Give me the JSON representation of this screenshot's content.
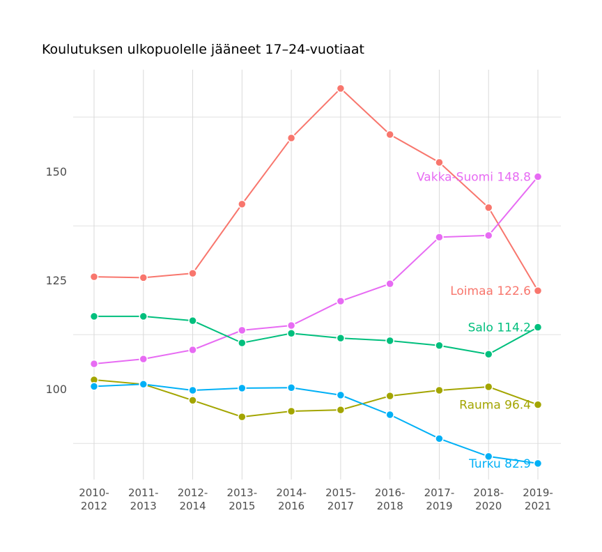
{
  "chart_data": {
    "type": "line",
    "title": "Koulutuksen ulkopuolelle jääneet 17–24-vuotiaat",
    "xlabel": "",
    "ylabel": "",
    "categories": [
      "2010-\n2012",
      "2011-\n2013",
      "2012-\n2014",
      "2013-\n2015",
      "2014-\n2016",
      "2015-\n2017",
      "2016-\n2018",
      "2017-\n2019",
      "2018-\n2020",
      "2019-\n2021"
    ],
    "yticks": [
      100,
      125,
      150
    ],
    "ylim": [
      79.2,
      173.4
    ],
    "grid": true,
    "legend": "none (direct labels at line ends)",
    "series": [
      {
        "name": "Loimaa",
        "color": "#F8766D",
        "label": "Loimaa 122.6",
        "values": [
          125.8,
          125.6,
          126.6,
          142.5,
          157.7,
          169.1,
          158.5,
          152.1,
          141.7,
          122.6
        ]
      },
      {
        "name": "Vakka-Suomi",
        "color": "#E76BF3",
        "label": "Vakka-Suomi 148.8",
        "values": [
          105.8,
          106.9,
          109.0,
          113.5,
          114.6,
          120.2,
          124.2,
          134.9,
          135.3,
          148.8
        ]
      },
      {
        "name": "Salo",
        "color": "#00BF7D",
        "label": "Salo 114.2",
        "values": [
          116.7,
          116.7,
          115.7,
          110.6,
          112.8,
          111.7,
          111.1,
          110.0,
          108.0,
          114.2
        ]
      },
      {
        "name": "Rauma",
        "color": "#A3A500",
        "label": "Rauma 96.4",
        "values": [
          102.1,
          101.1,
          97.4,
          93.6,
          94.9,
          95.2,
          98.4,
          99.7,
          100.5,
          96.4
        ]
      },
      {
        "name": "Turku",
        "color": "#00B0F6",
        "label": "Turku 82.9",
        "values": [
          100.6,
          101.1,
          99.7,
          100.2,
          100.3,
          98.6,
          94.1,
          88.6,
          84.5,
          82.9
        ]
      }
    ]
  }
}
